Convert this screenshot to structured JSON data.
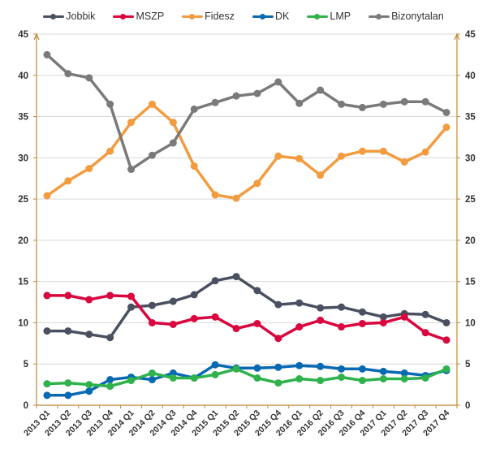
{
  "chart_data": {
    "type": "line",
    "title": "",
    "xlabel": "",
    "ylabel": "",
    "ylim": [
      0,
      45
    ],
    "yticks": [
      0,
      5,
      10,
      15,
      20,
      25,
      30,
      35,
      40,
      45
    ],
    "secondary_y_axis": true,
    "grid": true,
    "legend_position": "top",
    "axis_color": "#c0883a",
    "categories": [
      "2013 Q1",
      "2013 Q2",
      "2013 Q3",
      "2013 Q4",
      "2014 Q1",
      "2014 Q2",
      "2014 Q3",
      "2014 Q4",
      "2015 Q1",
      "2015 Q2",
      "2015 Q3",
      "2015 Q4",
      "2016 Q1",
      "2016 Q2",
      "2016 Q3",
      "2016 Q4",
      "2017 Q1",
      "2017 Q2",
      "2017 Q3",
      "2017 Q4"
    ],
    "series": [
      {
        "name": "Jobbik",
        "color": "#4a5060",
        "values": [
          9.0,
          9.0,
          8.6,
          8.2,
          11.9,
          12.1,
          12.6,
          13.4,
          15.1,
          15.6,
          13.9,
          12.2,
          12.4,
          11.8,
          11.9,
          11.3,
          10.7,
          11.1,
          11.0,
          10.0
        ]
      },
      {
        "name": "MSZP",
        "color": "#d9063f",
        "values": [
          13.3,
          13.3,
          12.8,
          13.3,
          13.2,
          10.0,
          9.8,
          10.5,
          10.7,
          9.3,
          9.9,
          8.1,
          9.5,
          10.3,
          9.5,
          9.9,
          10.0,
          10.7,
          8.8,
          7.9
        ]
      },
      {
        "name": "Fidesz",
        "color": "#f39b3f",
        "values": [
          25.4,
          27.2,
          28.7,
          30.8,
          34.3,
          36.5,
          34.3,
          29.0,
          25.5,
          25.1,
          26.9,
          30.2,
          29.9,
          27.9,
          30.2,
          30.8,
          30.8,
          29.5,
          30.7,
          33.7
        ]
      },
      {
        "name": "DK",
        "color": "#0869b3",
        "values": [
          1.2,
          1.2,
          1.7,
          3.1,
          3.4,
          3.1,
          3.9,
          3.3,
          4.9,
          4.5,
          4.5,
          4.6,
          4.8,
          4.7,
          4.4,
          4.4,
          4.1,
          3.9,
          3.6,
          4.2
        ]
      },
      {
        "name": "LMP",
        "color": "#2fb24c",
        "values": [
          2.6,
          2.7,
          2.5,
          2.3,
          3.0,
          3.9,
          3.3,
          3.3,
          3.7,
          4.4,
          3.3,
          2.7,
          3.2,
          3.0,
          3.4,
          3.0,
          3.2,
          3.2,
          3.3,
          4.4
        ]
      },
      {
        "name": "Bizonytalan",
        "color": "#7a7a7a",
        "values": [
          42.5,
          40.2,
          39.7,
          36.5,
          28.6,
          30.3,
          31.8,
          35.9,
          36.7,
          37.5,
          37.8,
          39.2,
          36.6,
          38.2,
          36.5,
          36.1,
          36.5,
          36.8,
          36.8,
          35.5
        ]
      }
    ]
  }
}
